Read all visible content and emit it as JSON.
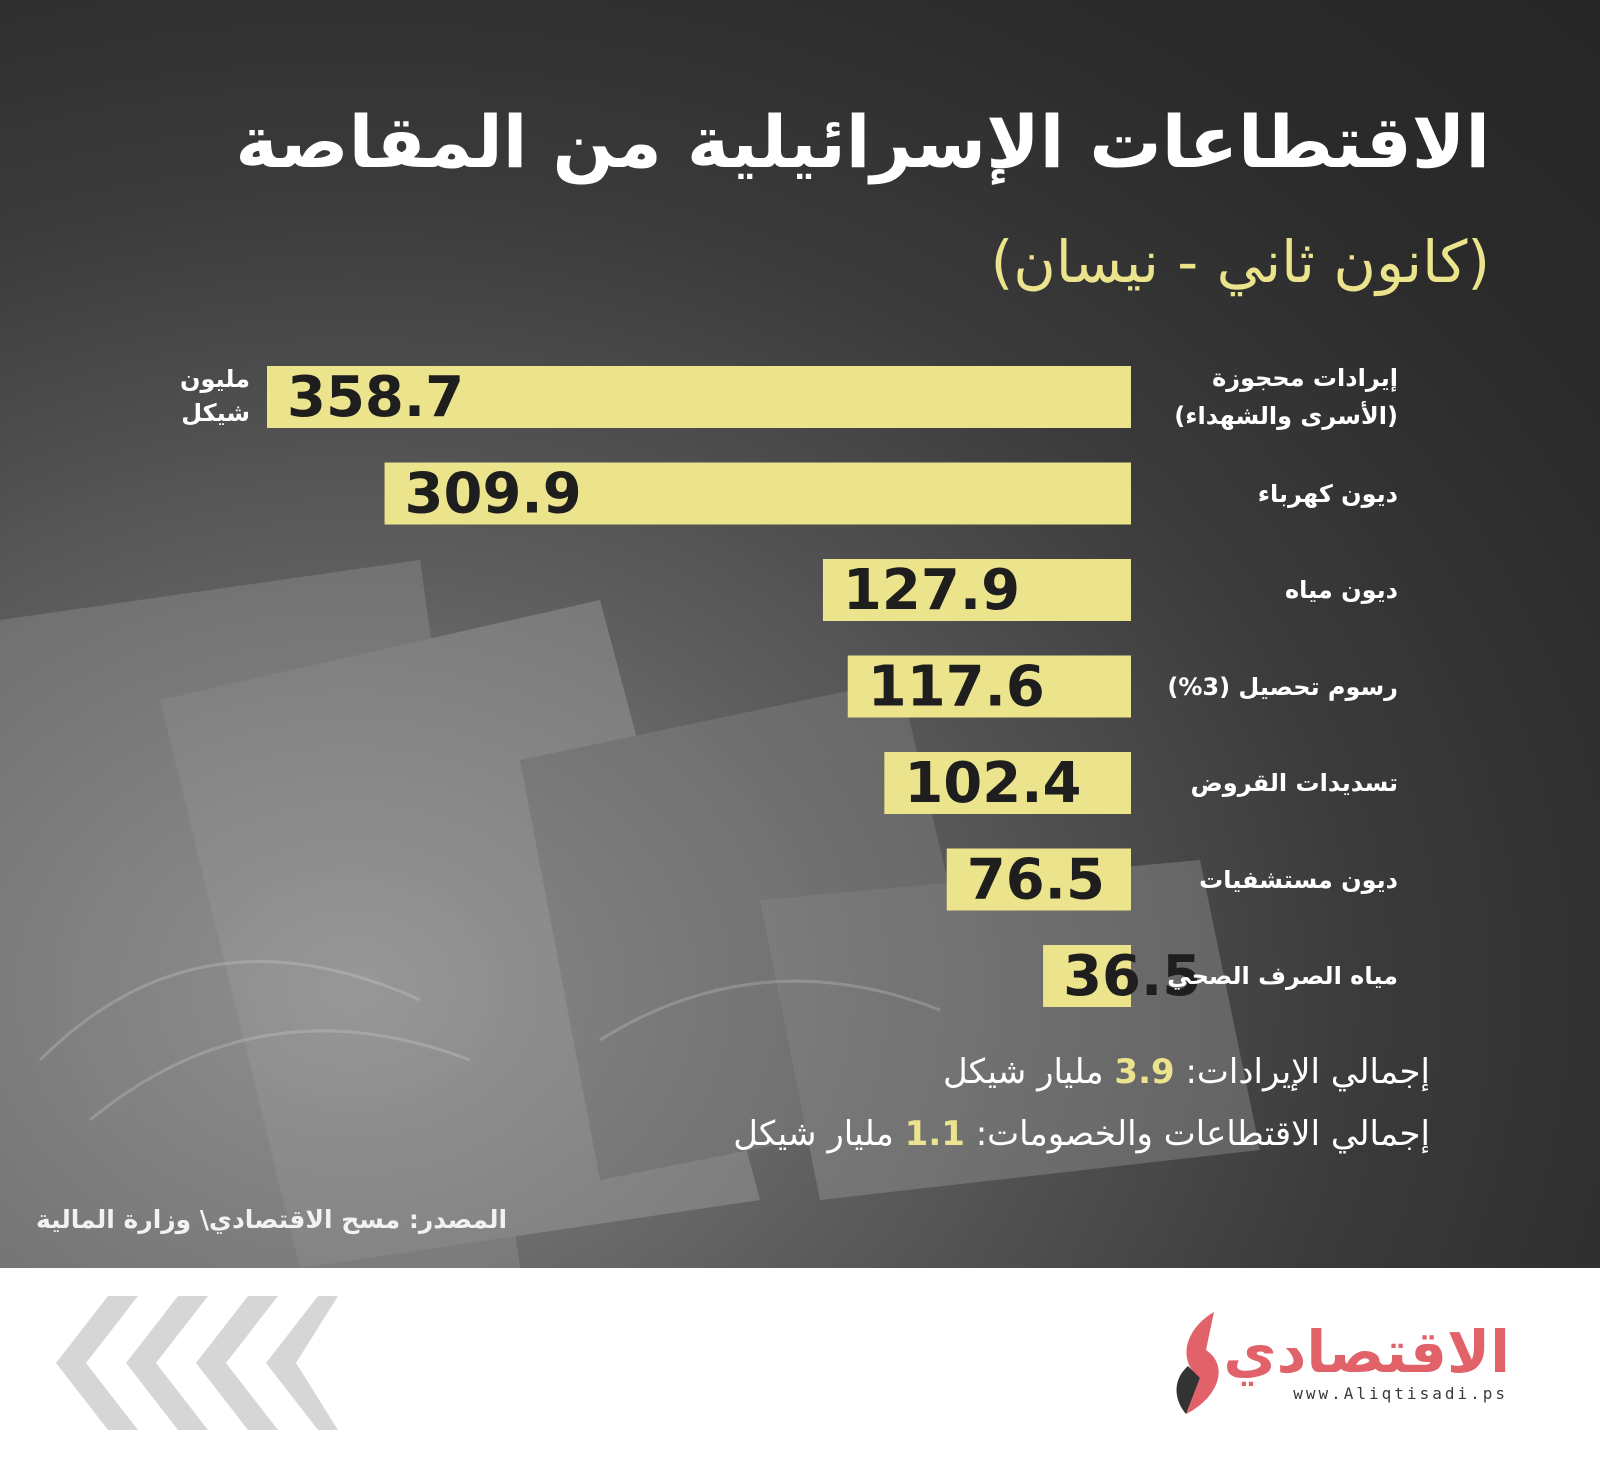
{
  "title": "الاقتطاعات الإسرائيلية من المقاصة",
  "subtitle": "(كانون ثاني - نيسان)",
  "unit_label": [
    "مليون",
    "شيكل"
  ],
  "chart_data": {
    "type": "bar",
    "orientation": "horizontal",
    "categories": [
      [
        "إيرادات محجوزة",
        "(الأسرى والشهداء)"
      ],
      [
        "ديون كهرباء"
      ],
      [
        "ديون مياه"
      ],
      [
        "رسوم تحصيل (3%)"
      ],
      [
        "تسديدات القروض"
      ],
      [
        "ديون مستشفيات"
      ],
      [
        "مياه الصرف الصحي"
      ]
    ],
    "values": [
      358.7,
      309.9,
      127.9,
      117.6,
      102.4,
      76.5,
      36.5
    ],
    "value_labels": [
      "358.7",
      "309.9",
      "127.9",
      "117.6",
      "102.4",
      "76.5",
      "36.5"
    ],
    "bar_color": "#ece48c",
    "value_text_color": "#1e1e1e",
    "xlim": [
      0,
      358.7
    ]
  },
  "totals": [
    {
      "prefix": "إجمالي الإيرادات: ",
      "number": "3.9",
      "suffix": " مليار شيكل"
    },
    {
      "prefix": "إجمالي الاقتطاعات والخصومات: ",
      "number": "1.1",
      "suffix": " مليار شيكل"
    }
  ],
  "source": "المصدر: مسح الاقتصادي\\ وزارة المالية",
  "logo": {
    "name": "الاقتصادي",
    "url": "www.Aliqtisadi.ps"
  },
  "colors": {
    "accent": "#ece48c",
    "brand": "#e2626a",
    "background": "#2b2b2b"
  }
}
